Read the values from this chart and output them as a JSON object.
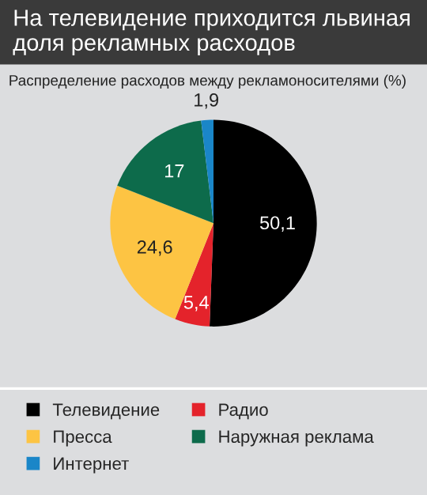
{
  "chart_data": {
    "type": "pie",
    "title": "На телевидение приходится львиная доля рекламных расходов",
    "subtitle": "Распределение расходов между рекламоносителями (%)",
    "categories": [
      "Телевидение",
      "Радио",
      "Пресса",
      "Наружная реклама",
      "Интернет"
    ],
    "values": [
      50.1,
      5.4,
      24.6,
      17,
      1.9
    ],
    "value_labels": [
      "50,1",
      "5,4",
      "24,6",
      "17",
      "1,9"
    ],
    "colors": [
      "#000000",
      "#e4232b",
      "#fdc443",
      "#0d6b4b",
      "#1a86c8"
    ],
    "legend": "bottom"
  }
}
